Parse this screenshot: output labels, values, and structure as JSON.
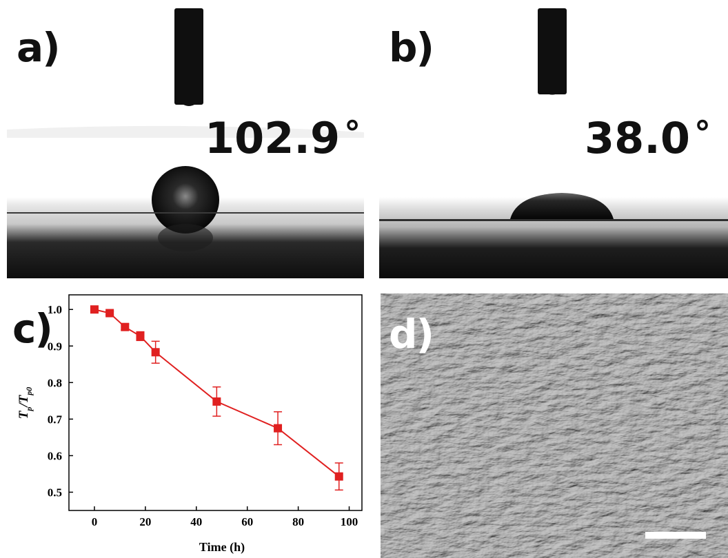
{
  "panels": {
    "a": {
      "label": "a)",
      "contact_angle": "102.9",
      "degree": "°"
    },
    "b": {
      "label": "b)",
      "contact_angle": "38.0",
      "degree": "°"
    },
    "c": {
      "label": "c)"
    },
    "d": {
      "label": "d)"
    }
  },
  "colors": {
    "series": "#e02020",
    "axis": "#000000",
    "sem_gray": "#6e6e6e"
  },
  "chart_data": {
    "type": "line",
    "xlabel": "Time (h)",
    "ylabel_main": "T",
    "ylabel_sub": "p",
    "ylabel_slash": "/T",
    "ylabel_sub2": "p0",
    "xlim": [
      -10,
      105
    ],
    "ylim": [
      0.45,
      1.04
    ],
    "xticks": [
      0,
      20,
      40,
      60,
      80,
      100
    ],
    "yticks": [
      0.5,
      0.6,
      0.7,
      0.8,
      0.9,
      1.0
    ],
    "ytick_labels": [
      "0.5",
      "0.6",
      "0.7",
      "0.8",
      "0.9",
      "1.0"
    ],
    "grid": false,
    "series": [
      {
        "marker": "square",
        "x": [
          0,
          6,
          12,
          18,
          24,
          48,
          72,
          96
        ],
        "y": [
          1.0,
          0.99,
          0.952,
          0.927,
          0.883,
          0.748,
          0.675,
          0.543
        ],
        "err": [
          0.005,
          0.005,
          0.008,
          0.012,
          0.03,
          0.04,
          0.045,
          0.037
        ]
      }
    ]
  }
}
